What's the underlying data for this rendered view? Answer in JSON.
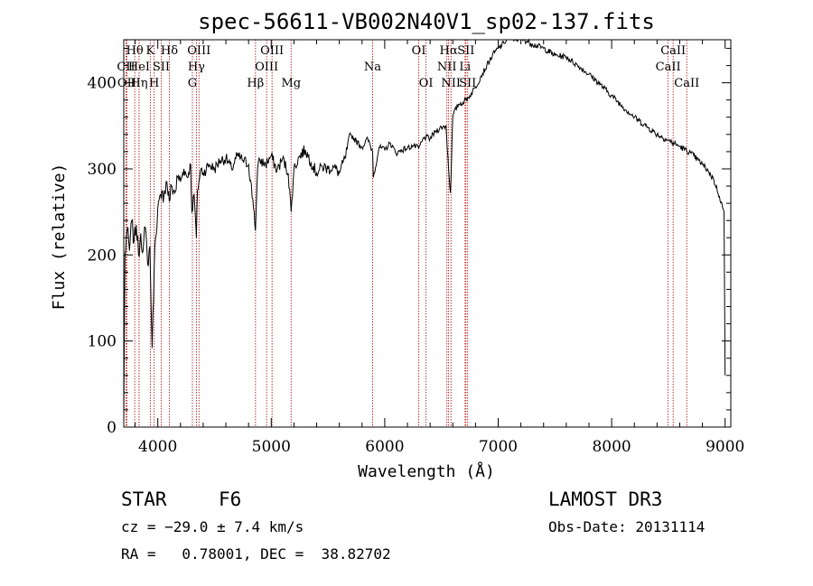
{
  "chart_data": {
    "type": "line",
    "title": "spec-56611-VB002N40V1_sp02-137.fits",
    "xlabel": "Wavelength (Å)",
    "ylabel": "Flux (relative)",
    "xlim": [
      3700,
      9050
    ],
    "ylim": [
      0,
      450
    ],
    "xticks": [
      4000,
      5000,
      6000,
      7000,
      8000,
      9000
    ],
    "yticks": [
      0,
      100,
      200,
      300,
      400
    ],
    "grid": false,
    "series": [
      {
        "name": "spectrum",
        "x": [
          3700,
          3710,
          3730,
          3750,
          3770,
          3790,
          3810,
          3830,
          3850,
          3870,
          3890,
          3910,
          3930,
          3950,
          3968,
          3980,
          4000,
          4030,
          4060,
          4080,
          4101,
          4120,
          4150,
          4180,
          4200,
          4230,
          4260,
          4290,
          4300,
          4320,
          4340,
          4350,
          4380,
          4400,
          4450,
          4500,
          4550,
          4600,
          4650,
          4700,
          4750,
          4800,
          4850,
          4861,
          4880,
          4900,
          4950,
          5000,
          5050,
          5100,
          5150,
          5175,
          5200,
          5250,
          5300,
          5350,
          5400,
          5450,
          5500,
          5550,
          5600,
          5650,
          5700,
          5750,
          5800,
          5850,
          5893,
          5900,
          5950,
          6000,
          6050,
          6100,
          6150,
          6200,
          6250,
          6300,
          6350,
          6400,
          6450,
          6500,
          6540,
          6563,
          6580,
          6600,
          6650,
          6700,
          6750,
          6800,
          6850,
          6900,
          6950,
          7000,
          7050,
          7100,
          7150,
          7200,
          7300,
          7400,
          7500,
          7600,
          7700,
          7800,
          7900,
          8000,
          8100,
          8200,
          8300,
          8400,
          8500,
          8600,
          8700,
          8800,
          8850,
          8900,
          8950,
          8990,
          9000
        ],
        "values": [
          5,
          200,
          230,
          205,
          240,
          215,
          235,
          200,
          225,
          205,
          232,
          190,
          210,
          92,
          185,
          220,
          255,
          265,
          275,
          285,
          262,
          280,
          272,
          292,
          285,
          300,
          290,
          305,
          250,
          270,
          220,
          275,
          300,
          295,
          305,
          300,
          310,
          312,
          300,
          315,
          310,
          305,
          250,
          228,
          300,
          310,
          305,
          315,
          298,
          312,
          295,
          250,
          300,
          315,
          322,
          308,
          295,
          303,
          300,
          302,
          295,
          312,
          340,
          332,
          325,
          335,
          320,
          290,
          325,
          322,
          330,
          318,
          322,
          324,
          327,
          324,
          337,
          335,
          344,
          348,
          350,
          300,
          272,
          362,
          375,
          378,
          385,
          395,
          408,
          420,
          432,
          440,
          446,
          455,
          450,
          452,
          445,
          440,
          432,
          430,
          420,
          410,
          398,
          385,
          372,
          360,
          350,
          340,
          333,
          326,
          318,
          305,
          298,
          287,
          268,
          250,
          60
        ]
      }
    ],
    "line_annotations": [
      {
        "label": "Hθ",
        "x": 3797,
        "row": 1
      },
      {
        "label": "CII",
        "x": 3720,
        "row": 2
      },
      {
        "label": "OII",
        "x": 3727,
        "row": 3
      },
      {
        "label": "HeI",
        "x": 3835,
        "row": 2
      },
      {
        "label": "Hη",
        "x": 3835,
        "row": 3
      },
      {
        "label": "K",
        "x": 3934,
        "row": 1
      },
      {
        "label": "SII",
        "x": 4030,
        "row": 2
      },
      {
        "label": "H",
        "x": 3968,
        "row": 3
      },
      {
        "label": "Hδ",
        "x": 4102,
        "row": 1
      },
      {
        "label": "OIII",
        "x": 4363,
        "row": 1
      },
      {
        "label": "Hγ",
        "x": 4340,
        "row": 2
      },
      {
        "label": "G",
        "x": 4305,
        "row": 3
      },
      {
        "label": "Hβ",
        "x": 4861,
        "row": 3
      },
      {
        "label": "OIII",
        "x": 5007,
        "row": 1
      },
      {
        "label": "OIII",
        "x": 4959,
        "row": 2
      },
      {
        "label": "Mg",
        "x": 5175,
        "row": 3
      },
      {
        "label": "Na",
        "x": 5893,
        "row": 2
      },
      {
        "label": "OI",
        "x": 6300,
        "row": 1
      },
      {
        "label": "OI",
        "x": 6364,
        "row": 3
      },
      {
        "label": "Hα",
        "x": 6563,
        "row": 1
      },
      {
        "label": "SII",
        "x": 6716,
        "row": 1
      },
      {
        "label": "NII",
        "x": 6548,
        "row": 2
      },
      {
        "label": "Li",
        "x": 6708,
        "row": 2
      },
      {
        "label": "NII",
        "x": 6584,
        "row": 3
      },
      {
        "label": "SII",
        "x": 6731,
        "row": 3
      },
      {
        "label": "CaII",
        "x": 8542,
        "row": 1
      },
      {
        "label": "CaII",
        "x": 8498,
        "row": 2
      },
      {
        "label": "CaII",
        "x": 8662,
        "row": 3
      }
    ]
  },
  "info": {
    "class_label": "STAR",
    "subclass": "F6",
    "survey": "LAMOST DR3",
    "cz": "cz = −29.0 ± 7.4 km/s",
    "obs_date": "Obs-Date: 20131114",
    "coords": "RA =   0.78001, DEC =  38.82702"
  },
  "colors": {
    "line": "#000000",
    "marker": "#b22222",
    "axis": "#000000"
  }
}
